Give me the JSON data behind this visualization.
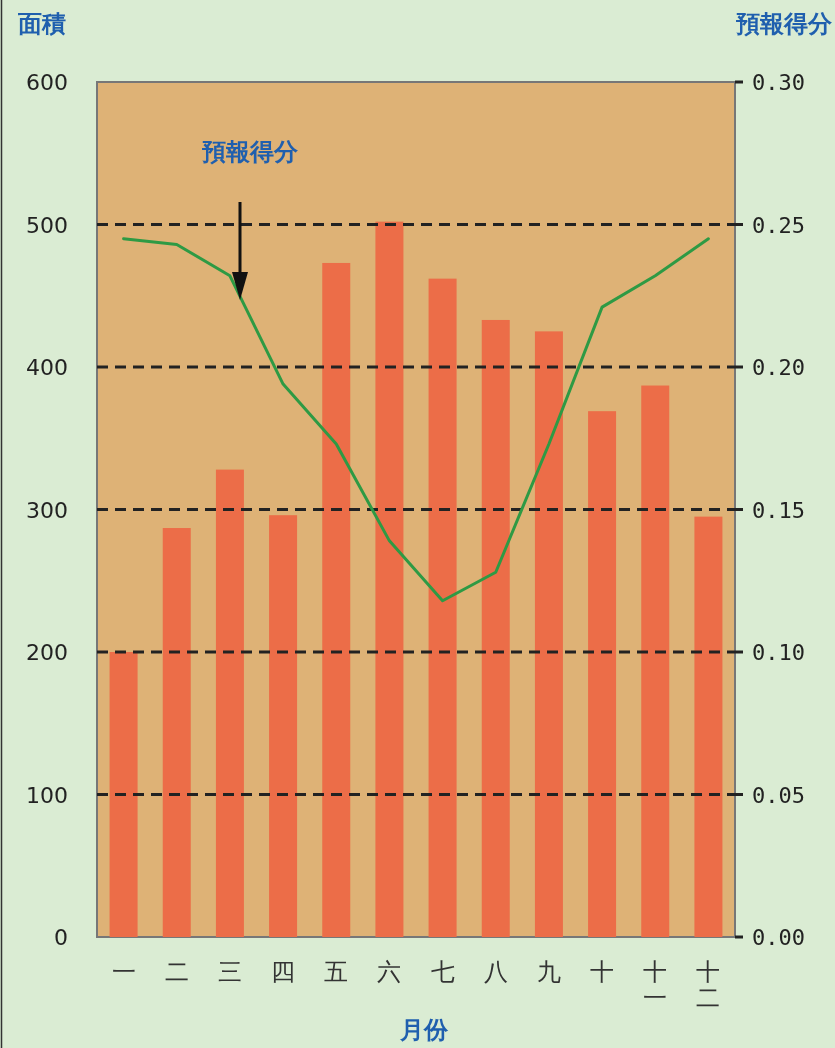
{
  "chart_data": {
    "type": "bar",
    "categories": [
      "一",
      "二",
      "三",
      "四",
      "五",
      "六",
      "七",
      "八",
      "九",
      "十",
      "十一",
      "十二"
    ],
    "xlabel": "月份",
    "ylabel": "面積",
    "y2label": "預報得分",
    "series": [
      {
        "color": "#ec6d48",
        "values": [
          200,
          287,
          328,
          296,
          473,
          502,
          462,
          433,
          425,
          369,
          387,
          295
        ]
      },
      {
        "type": "line",
        "axis": "y2",
        "color": "#2e9a44",
        "values": [
          0.245,
          0.243,
          0.232,
          0.194,
          0.173,
          0.139,
          0.118,
          0.128,
          0.173,
          0.221,
          0.232,
          0.245
        ]
      }
    ],
    "ylim": [
      0,
      600
    ],
    "yticks": [
      0,
      100,
      200,
      300,
      400,
      500,
      600
    ],
    "y2lim": [
      0,
      0.3
    ],
    "y2ticks": [
      {
        "value": 0,
        "label": "0.00"
      },
      {
        "value": 0.05,
        "label": "0.05"
      },
      {
        "value": 0.1,
        "label": "0.10"
      },
      {
        "value": 0.15,
        "label": "0.15"
      },
      {
        "value": 0.2,
        "label": "0.20"
      },
      {
        "value": 0.25,
        "label": "0.25"
      },
      {
        "value": 0.3,
        "label": "0.30"
      }
    ],
    "grid": "y",
    "marker": "none",
    "line_style": "solid",
    "annotations": [
      "預報得分"
    ]
  }
}
